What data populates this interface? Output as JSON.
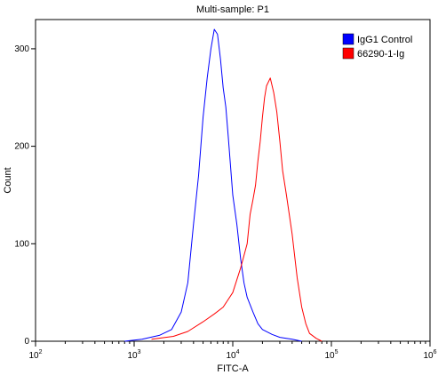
{
  "chart_data": {
    "type": "line",
    "title": "Multi-sample: P1",
    "xlabel": "FITC-A",
    "ylabel": "Count",
    "x_scale": "log",
    "xlim": [
      100,
      1000000
    ],
    "ylim": [
      0,
      330
    ],
    "x_ticks": [
      100,
      1000,
      10000,
      100000,
      1000000
    ],
    "x_tick_labels": [
      {
        "base": "10",
        "exp": "2"
      },
      {
        "base": "10",
        "exp": "3"
      },
      {
        "base": "10",
        "exp": "4"
      },
      {
        "base": "10",
        "exp": "5"
      },
      {
        "base": "10",
        "exp": "6"
      }
    ],
    "y_ticks": [
      0,
      100,
      200,
      300
    ],
    "y_tick_labels": [
      "0",
      "100",
      "200",
      "300"
    ],
    "grid": false,
    "legend_position": "top-right",
    "series": [
      {
        "name": "IgG1 Control",
        "color": "#0000ff",
        "x": [
          800,
          1200,
          1800,
          2400,
          3000,
          3500,
          4000,
          4500,
          5000,
          5500,
          6000,
          6500,
          7000,
          7500,
          8000,
          8500,
          9000,
          10000,
          11000,
          12000,
          13000,
          14000,
          16000,
          18000,
          20000,
          25000,
          30000,
          40000,
          50000
        ],
        "y": [
          0,
          2,
          6,
          12,
          30,
          60,
          120,
          170,
          230,
          270,
          300,
          320,
          315,
          290,
          260,
          240,
          210,
          150,
          120,
          85,
          60,
          45,
          30,
          18,
          12,
          7,
          4,
          2,
          0
        ]
      },
      {
        "name": "66290-1-Ig",
        "color": "#ff0000",
        "x": [
          1500,
          2500,
          3500,
          5000,
          6500,
          8000,
          10000,
          12000,
          14000,
          15000,
          16000,
          17000,
          18000,
          19000,
          20000,
          21000,
          22000,
          24000,
          26000,
          28000,
          30000,
          32000,
          35000,
          40000,
          45000,
          50000,
          55000,
          60000,
          70000,
          80000
        ],
        "y": [
          2,
          5,
          10,
          20,
          28,
          35,
          50,
          75,
          100,
          130,
          145,
          160,
          185,
          205,
          230,
          250,
          262,
          270,
          255,
          235,
          205,
          175,
          150,
          110,
          65,
          35,
          18,
          8,
          3,
          0
        ]
      }
    ]
  }
}
